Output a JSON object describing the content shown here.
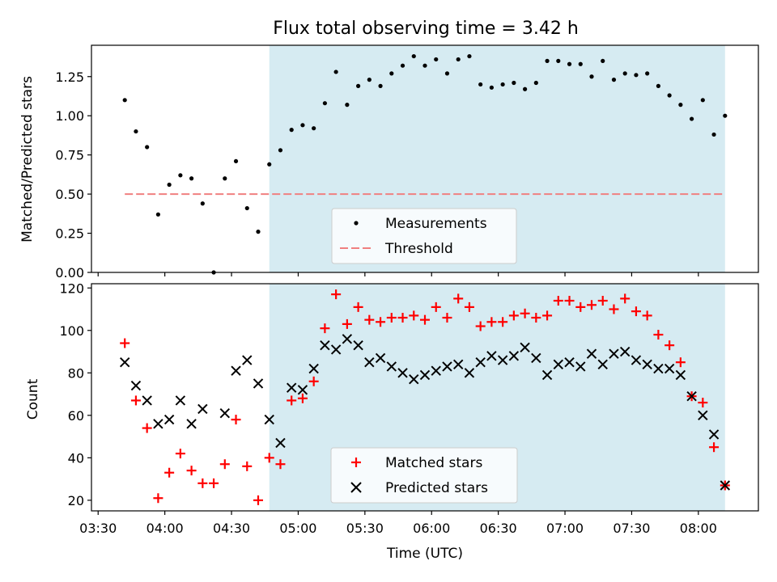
{
  "chart_data": [
    {
      "type": "scatter",
      "title": "Flux total observing time = 3.42 h",
      "xlabel": "",
      "ylabel": "Matched/Predicted stars",
      "ylim": [
        0,
        1.45
      ],
      "yticks": [
        "0.00",
        "0.25",
        "0.50",
        "0.75",
        "1.00",
        "1.25"
      ],
      "xlim": [
        "03:27",
        "08:27"
      ],
      "shaded_span": {
        "start": "04:47",
        "end": "08:12",
        "color": "#add8e6"
      },
      "threshold": {
        "name": "Threshold",
        "value": 0.5,
        "x_start": "03:42",
        "x_end": "08:12",
        "color": "#f08080"
      },
      "series": [
        {
          "name": "Measurements",
          "color": "#000000",
          "marker": "dot",
          "x": [
            "03:42",
            "03:47",
            "03:52",
            "03:57",
            "04:02",
            "04:07",
            "04:12",
            "04:17",
            "04:22",
            "04:27",
            "04:32",
            "04:37",
            "04:42",
            "04:47",
            "04:52",
            "04:57",
            "05:02",
            "05:07",
            "05:12",
            "05:17",
            "05:22",
            "05:27",
            "05:32",
            "05:37",
            "05:42",
            "05:47",
            "05:52",
            "05:57",
            "06:02",
            "06:07",
            "06:12",
            "06:17",
            "06:22",
            "06:27",
            "06:32",
            "06:37",
            "06:42",
            "06:47",
            "06:52",
            "06:57",
            "07:02",
            "07:07",
            "07:12",
            "07:17",
            "07:22",
            "07:27",
            "07:32",
            "07:37",
            "07:42",
            "07:47",
            "07:52",
            "07:57",
            "08:02",
            "08:07",
            "08:12"
          ],
          "y": [
            1.1,
            0.9,
            0.8,
            0.37,
            0.56,
            0.62,
            0.6,
            0.44,
            0.0,
            0.6,
            0.71,
            0.41,
            0.26,
            0.69,
            0.78,
            0.91,
            0.94,
            0.92,
            1.08,
            1.28,
            1.07,
            1.19,
            1.23,
            1.19,
            1.27,
            1.32,
            1.38,
            1.32,
            1.36,
            1.27,
            1.36,
            1.38,
            1.2,
            1.18,
            1.2,
            1.21,
            1.17,
            1.21,
            1.35,
            1.35,
            1.33,
            1.33,
            1.25,
            1.35,
            1.23,
            1.27,
            1.26,
            1.27,
            1.19,
            1.13,
            1.07,
            0.98,
            1.1,
            0.88,
            1.0
          ]
        }
      ],
      "legend": {
        "placement": "bottom-center",
        "items": [
          "Measurements",
          "Threshold"
        ]
      }
    },
    {
      "type": "scatter",
      "title": "",
      "xlabel": "Time (UTC)",
      "ylabel": "Count",
      "ylim": [
        15,
        122
      ],
      "yticks": [
        "20",
        "40",
        "60",
        "80",
        "100",
        "120"
      ],
      "xlim": [
        "03:27",
        "08:27"
      ],
      "xticks": [
        "03:30",
        "04:00",
        "04:30",
        "05:00",
        "05:30",
        "06:00",
        "06:30",
        "07:00",
        "07:30",
        "08:00"
      ],
      "shaded_span": {
        "start": "04:47",
        "end": "08:12",
        "color": "#add8e6"
      },
      "series": [
        {
          "name": "Matched stars",
          "color": "#ff0000",
          "marker": "plus",
          "x": [
            "03:42",
            "03:47",
            "03:52",
            "03:57",
            "04:02",
            "04:07",
            "04:12",
            "04:17",
            "04:22",
            "04:27",
            "04:32",
            "04:37",
            "04:42",
            "04:47",
            "04:52",
            "04:57",
            "05:02",
            "05:07",
            "05:12",
            "05:17",
            "05:22",
            "05:27",
            "05:32",
            "05:37",
            "05:42",
            "05:47",
            "05:52",
            "05:57",
            "06:02",
            "06:07",
            "06:12",
            "06:17",
            "06:22",
            "06:27",
            "06:32",
            "06:37",
            "06:42",
            "06:47",
            "06:52",
            "06:57",
            "07:02",
            "07:07",
            "07:12",
            "07:17",
            "07:22",
            "07:27",
            "07:32",
            "07:37",
            "07:42",
            "07:47",
            "07:52",
            "07:57",
            "08:02",
            "08:07",
            "08:12"
          ],
          "y": [
            94,
            67,
            54,
            21,
            33,
            42,
            34,
            28,
            28,
            37,
            58,
            36,
            20,
            40,
            37,
            67,
            68,
            76,
            101,
            117,
            103,
            111,
            105,
            104,
            106,
            106,
            107,
            105,
            111,
            106,
            115,
            111,
            102,
            104,
            104,
            107,
            108,
            106,
            107,
            114,
            114,
            111,
            112,
            114,
            110,
            115,
            109,
            107,
            98,
            93,
            85,
            69,
            66,
            45,
            27
          ]
        },
        {
          "name": "Predicted stars",
          "color": "#000000",
          "marker": "x",
          "x": [
            "03:42",
            "03:47",
            "03:52",
            "03:57",
            "04:02",
            "04:07",
            "04:12",
            "04:17",
            "04:27",
            "04:32",
            "04:37",
            "04:42",
            "04:47",
            "04:52",
            "04:57",
            "05:02",
            "05:07",
            "05:12",
            "05:17",
            "05:22",
            "05:27",
            "05:32",
            "05:37",
            "05:42",
            "05:47",
            "05:52",
            "05:57",
            "06:02",
            "06:07",
            "06:12",
            "06:17",
            "06:22",
            "06:27",
            "06:32",
            "06:37",
            "06:42",
            "06:47",
            "06:52",
            "06:57",
            "07:02",
            "07:07",
            "07:12",
            "07:17",
            "07:22",
            "07:27",
            "07:32",
            "07:37",
            "07:42",
            "07:47",
            "07:52",
            "07:57",
            "08:02",
            "08:07",
            "08:12"
          ],
          "y": [
            85,
            74,
            67,
            56,
            58,
            67,
            56,
            63,
            61,
            81,
            86,
            75,
            58,
            47,
            73,
            72,
            82,
            93,
            91,
            96,
            93,
            85,
            87,
            83,
            80,
            77,
            79,
            81,
            83,
            84,
            80,
            85,
            88,
            86,
            88,
            92,
            87,
            79,
            84,
            85,
            83,
            89,
            84,
            89,
            90,
            86,
            84,
            82,
            82,
            79,
            69,
            60,
            51,
            27
          ]
        }
      ],
      "legend": {
        "placement": "bottom-center",
        "items": [
          "Matched stars",
          "Predicted stars"
        ]
      }
    }
  ]
}
